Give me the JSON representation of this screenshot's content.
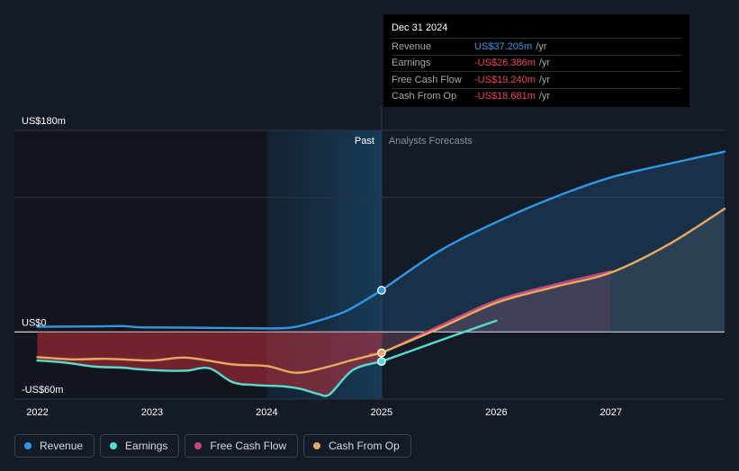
{
  "tooltip": {
    "date": "Dec 31 2024",
    "rows": [
      {
        "label": "Revenue",
        "value": "US$37.205m",
        "unit": "/yr",
        "color": "#2f97e4"
      },
      {
        "label": "Earnings",
        "value": "-US$26.386m",
        "unit": "/yr",
        "color": "#f0474b"
      },
      {
        "label": "Free Cash Flow",
        "value": "-US$19.240m",
        "unit": "/yr",
        "color": "#f0474b"
      },
      {
        "label": "Cash From Op",
        "value": "-US$18.681m",
        "unit": "/yr",
        "color": "#f0474b"
      }
    ]
  },
  "legend": [
    {
      "label": "Revenue",
      "color": "#2f97e4"
    },
    {
      "label": "Earnings",
      "color": "#58dccf"
    },
    {
      "label": "Free Cash Flow",
      "color": "#c4487d"
    },
    {
      "label": "Cash From Op",
      "color": "#e8a961"
    }
  ],
  "chart_data": {
    "type": "line",
    "title": "",
    "xlabel": "",
    "ylabel": "",
    "ylim": [
      -60,
      180
    ],
    "xlim": [
      2021.8,
      2027.99
    ],
    "y_axis_labels": [
      {
        "value": 180,
        "label": "US$180m"
      },
      {
        "value": 0,
        "label": "US$0"
      },
      {
        "value": -60,
        "label": "-US$60m"
      }
    ],
    "x_ticks": [
      2022,
      2023,
      2024,
      2025,
      2026,
      2027
    ],
    "x_tick_labels": [
      "2022",
      "2023",
      "2024",
      "2025",
      "2026",
      "2027"
    ],
    "past_label": "Past",
    "forecast_label": "Analysts Forecasts",
    "past_shade_start": 2024.0,
    "forecast_start": 2025.0,
    "highlight_point": 2025.0,
    "series": [
      {
        "name": "Revenue",
        "color": "#2f97e4",
        "past": [
          [
            2022.0,
            4.6
          ],
          [
            2022.3,
            4.8
          ],
          [
            2022.5,
            4.9
          ],
          [
            2022.75,
            5.2
          ],
          [
            2022.9,
            4.1
          ],
          [
            2023.2,
            3.9
          ],
          [
            2023.6,
            3.5
          ],
          [
            2023.9,
            3.2
          ],
          [
            2024.1,
            3.2
          ],
          [
            2024.25,
            4.5
          ],
          [
            2024.45,
            10
          ],
          [
            2024.7,
            19
          ],
          [
            2025.0,
            37.2
          ]
        ],
        "forecast": [
          [
            2025.0,
            37.2
          ],
          [
            2025.5,
            72
          ],
          [
            2026.0,
            98
          ],
          [
            2026.5,
            120
          ],
          [
            2027.0,
            138
          ],
          [
            2027.5,
            150
          ],
          [
            2027.99,
            161
          ]
        ]
      },
      {
        "name": "Earnings",
        "color": "#58dccf",
        "past": [
          [
            2022.0,
            -25.5
          ],
          [
            2022.25,
            -27.5
          ],
          [
            2022.5,
            -31
          ],
          [
            2022.75,
            -32
          ],
          [
            2022.9,
            -33.5
          ],
          [
            2023.1,
            -34.6
          ],
          [
            2023.3,
            -34.6
          ],
          [
            2023.5,
            -32.5
          ],
          [
            2023.7,
            -44.8
          ],
          [
            2023.9,
            -47.5
          ],
          [
            2024.15,
            -48.7
          ],
          [
            2024.3,
            -51
          ],
          [
            2024.45,
            -55.5
          ],
          [
            2024.55,
            -55.5
          ],
          [
            2024.75,
            -34
          ],
          [
            2025.0,
            -26.4
          ]
        ],
        "forecast": [
          [
            2025.0,
            -26.4
          ],
          [
            2025.5,
            -8
          ],
          [
            2026.0,
            10
          ]
        ]
      },
      {
        "name": "Free Cash Flow",
        "color": "#c4487d",
        "past": [
          [
            2024.9,
            -20
          ],
          [
            2025.0,
            -19.2
          ]
        ],
        "forecast": [
          [
            2025.0,
            -19.2
          ],
          [
            2025.5,
            5
          ],
          [
            2026.0,
            28
          ],
          [
            2026.5,
            42
          ],
          [
            2027.0,
            54
          ]
        ]
      },
      {
        "name": "Cash From Op",
        "color": "#e8a961",
        "past": [
          [
            2022.0,
            -22.5
          ],
          [
            2022.3,
            -24.5
          ],
          [
            2022.6,
            -24
          ],
          [
            2023.0,
            -25.5
          ],
          [
            2023.3,
            -23
          ],
          [
            2023.7,
            -29
          ],
          [
            2024.0,
            -30.5
          ],
          [
            2024.25,
            -36.5
          ],
          [
            2024.5,
            -32
          ],
          [
            2024.75,
            -25
          ],
          [
            2025.0,
            -18.7
          ]
        ],
        "forecast": [
          [
            2025.0,
            -18.7
          ],
          [
            2025.5,
            3
          ],
          [
            2026.0,
            26
          ],
          [
            2026.5,
            40
          ],
          [
            2027.0,
            53
          ],
          [
            2027.5,
            78
          ],
          [
            2027.99,
            110
          ]
        ]
      }
    ]
  }
}
